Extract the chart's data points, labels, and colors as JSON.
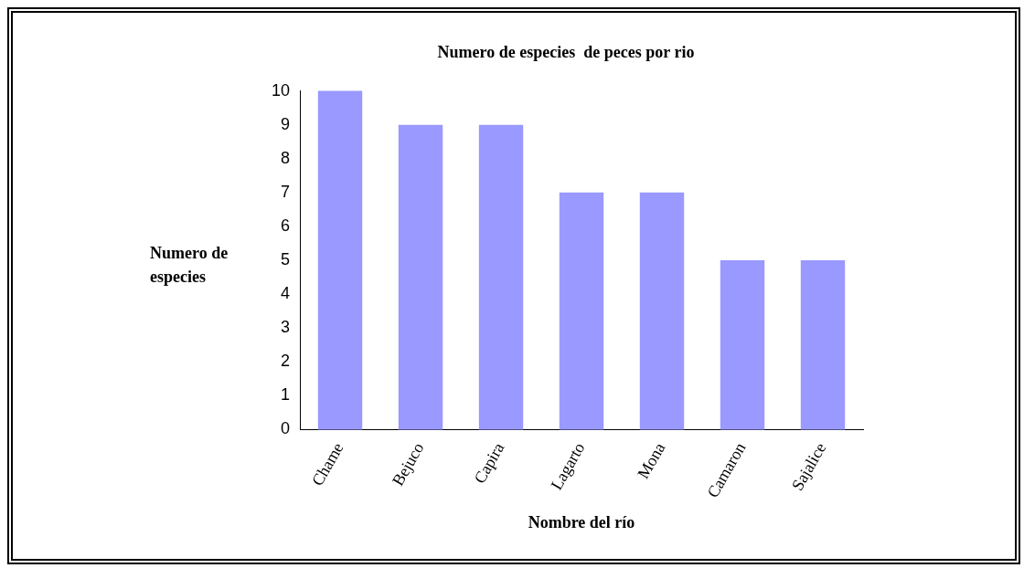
{
  "chart_data": {
    "type": "bar",
    "title": "Numero de especies  de peces por rio",
    "xlabel": "Nombre del río",
    "ylabel": "Numero de especies",
    "categories": [
      "Chame",
      "Bejuco",
      "Capira",
      "Lagarto",
      "Mona",
      "Camaron",
      "Sajalice"
    ],
    "values": [
      10,
      9,
      9,
      7,
      7,
      5,
      5
    ],
    "color": "#9999ff",
    "ylim": [
      0,
      10
    ],
    "yticks": [
      0,
      1,
      2,
      3,
      4,
      5,
      6,
      7,
      8,
      9,
      10
    ],
    "grid": false,
    "legend": false
  }
}
